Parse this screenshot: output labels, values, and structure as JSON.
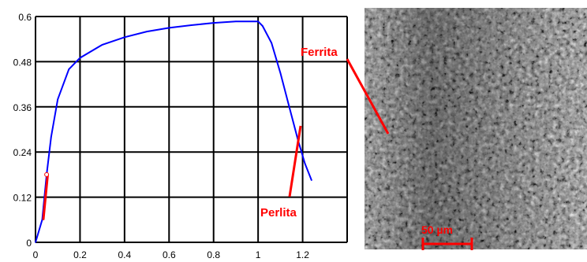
{
  "chart_data": {
    "type": "line",
    "title": "",
    "xlabel": "",
    "ylabel": "",
    "xlim": [
      0,
      1.4
    ],
    "ylim": [
      0,
      0.6
    ],
    "xticks": [
      "0",
      "0.2",
      "0.4",
      "0.6",
      "0.8",
      "1",
      "1.2"
    ],
    "yticks": [
      "0",
      "0.12",
      "0.24",
      "0.36",
      "0.48",
      "0.6"
    ],
    "grid": true,
    "series": [
      {
        "color": "#0000ff",
        "x": [
          0.0,
          0.03,
          0.05,
          0.07,
          0.1,
          0.15,
          0.2,
          0.3,
          0.4,
          0.5,
          0.6,
          0.7,
          0.8,
          0.9,
          1.0,
          1.02,
          1.06,
          1.1,
          1.14,
          1.18,
          1.21,
          1.24
        ],
        "y": [
          0.0,
          0.06,
          0.18,
          0.28,
          0.38,
          0.46,
          0.49,
          0.525,
          0.545,
          0.56,
          0.57,
          0.577,
          0.583,
          0.587,
          0.587,
          0.575,
          0.53,
          0.45,
          0.36,
          0.27,
          0.21,
          0.165
        ]
      },
      {
        "color": "#ff0000",
        "x": [
          0.035,
          0.045,
          0.055
        ],
        "y": [
          0.06,
          0.12,
          0.18
        ]
      }
    ]
  },
  "annotations": {
    "ferrita": "Ferrita",
    "perlita": "Perlita",
    "scale_bar": "50 µm"
  },
  "colors": {
    "annotation": "#ff0000",
    "curve": "#0000ff"
  }
}
